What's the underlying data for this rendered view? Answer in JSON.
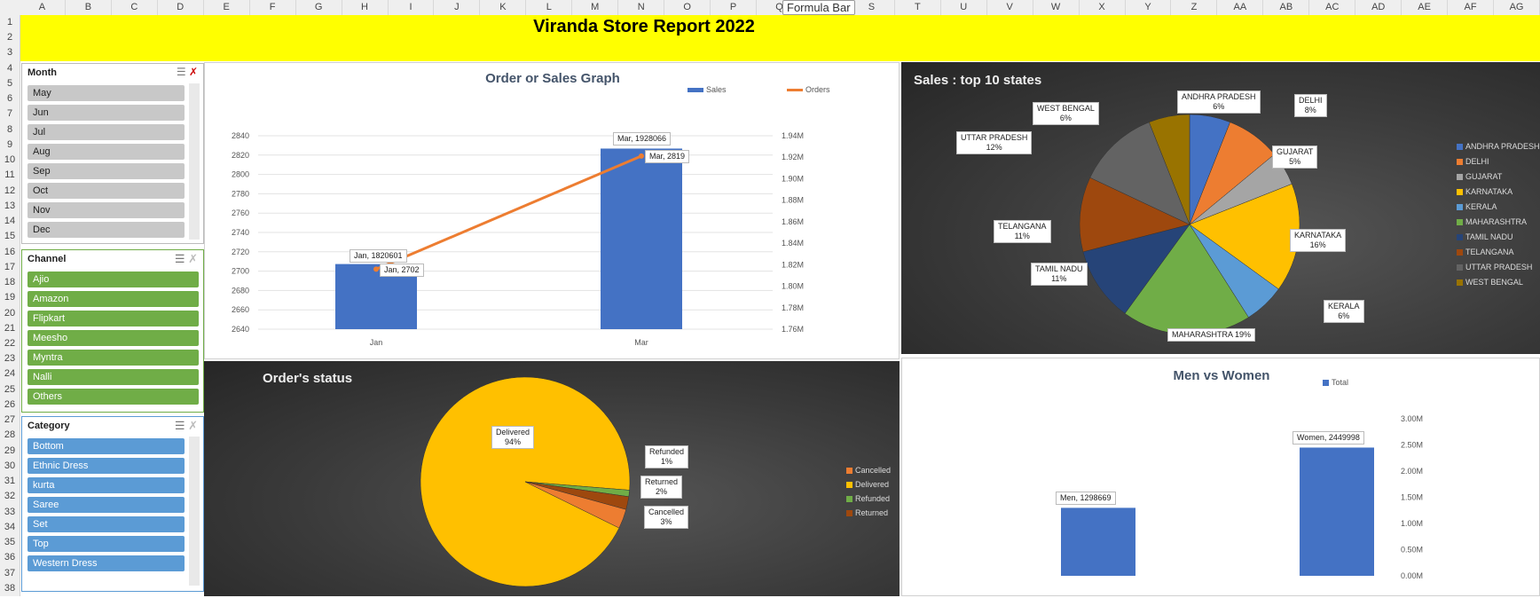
{
  "spreadsheet": {
    "formula_tip": "Formula Bar",
    "columns": [
      "A",
      "B",
      "C",
      "D",
      "E",
      "F",
      "G",
      "H",
      "I",
      "J",
      "K",
      "L",
      "M",
      "N",
      "O",
      "P",
      "Q",
      "R",
      "S",
      "T",
      "U",
      "V",
      "W",
      "X",
      "Y",
      "Z",
      "AA",
      "AB",
      "AC",
      "AD",
      "AE",
      "AF",
      "AG"
    ],
    "rows": [
      "1",
      "2",
      "3",
      "4",
      "5",
      "6",
      "7",
      "8",
      "9",
      "10",
      "11",
      "12",
      "13",
      "14",
      "15",
      "16",
      "17",
      "18",
      "19",
      "20",
      "21",
      "22",
      "23",
      "24",
      "25",
      "26",
      "27",
      "28",
      "29",
      "30",
      "31",
      "32",
      "33",
      "34",
      "35",
      "36",
      "37",
      "38"
    ]
  },
  "report": {
    "title": "Viranda Store Report 2022",
    "banner_color": "#ffff00"
  },
  "slicers": {
    "month": {
      "header": "Month",
      "items": [
        "May",
        "Jun",
        "Jul",
        "Aug",
        "Sep",
        "Oct",
        "Nov",
        "Dec"
      ],
      "color": "#c8c8c8"
    },
    "channel": {
      "header": "Channel",
      "items": [
        "Ajio",
        "Amazon",
        "Flipkart",
        "Meesho",
        "Myntra",
        "Nalli",
        "Others"
      ],
      "color": "#70ad47"
    },
    "category": {
      "header": "Category",
      "items": [
        "Bottom",
        "Ethnic Dress",
        "kurta",
        "Saree",
        "Set",
        "Top",
        "Western Dress"
      ],
      "color": "#5b9bd5"
    }
  },
  "charts": {
    "orders_sales": {
      "title": "Order or Sales Graph",
      "legend": [
        "Sales",
        "Orders"
      ],
      "left_ticks": [
        "2840",
        "2820",
        "2800",
        "2780",
        "2760",
        "2740",
        "2720",
        "2700",
        "2680",
        "2660",
        "2640"
      ],
      "right_ticks": [
        "1.94M",
        "1.92M",
        "1.90M",
        "1.88M",
        "1.86M",
        "1.84M",
        "1.82M",
        "1.80M",
        "1.78M",
        "1.76M"
      ],
      "categories": [
        "Jan",
        "Mar"
      ],
      "labels": [
        "Jan, 1820601",
        "Jan, 2702",
        "Mar, 1928066",
        "Mar, 2819"
      ]
    },
    "states": {
      "title": "Sales : top 10 states",
      "labels": [
        {
          "name": "ANDHRA PRADESH",
          "pct": "6%"
        },
        {
          "name": "DELHI",
          "pct": "8%"
        },
        {
          "name": "GUJARAT",
          "pct": "5%"
        },
        {
          "name": "KARNATAKA",
          "pct": "16%"
        },
        {
          "name": "KERALA",
          "pct": "6%"
        },
        {
          "name": "MAHARASHTRA",
          "pct": "19%"
        },
        {
          "name": "TAMIL NADU",
          "pct": "11%"
        },
        {
          "name": "TELANGANA",
          "pct": "11%"
        },
        {
          "name": "UTTAR PRADESH",
          "pct": "12%"
        },
        {
          "name": "WEST BENGAL",
          "pct": "6%"
        }
      ],
      "colors": [
        "#4472c4",
        "#ed7d31",
        "#a5a5a5",
        "#ffc000",
        "#5b9bd5",
        "#70ad47",
        "#264478",
        "#9e480e",
        "#636363",
        "#997300"
      ]
    },
    "order_status": {
      "title": "Order's status",
      "legend": [
        "Cancelled",
        "Delivered",
        "Refunded",
        "Returned"
      ],
      "colors": {
        "Cancelled": "#ed7d31",
        "Delivered": "#ffc000",
        "Refunded": "#70ad47",
        "Returned": "#9e480e"
      },
      "labels": [
        {
          "name": "Delivered",
          "pct": "94%"
        },
        {
          "name": "Refunded",
          "pct": "1%"
        },
        {
          "name": "Returned",
          "pct": "2%"
        },
        {
          "name": "Cancelled",
          "pct": "3%"
        }
      ]
    },
    "men_women": {
      "title": "Men vs Women",
      "legend": [
        "Total"
      ],
      "right_ticks": [
        "3.00M",
        "2.50M",
        "2.00M",
        "1.50M",
        "1.00M",
        "0.50M",
        "0.00M"
      ],
      "labels": [
        "Men, 1298669",
        "Women, 2449998"
      ]
    }
  },
  "chart_data": [
    {
      "type": "bar",
      "title": "Order or Sales Graph",
      "categories": [
        "Jan",
        "Mar"
      ],
      "series": [
        {
          "name": "Sales",
          "values": [
            1820601,
            1928066
          ]
        },
        {
          "name": "Orders",
          "values": [
            2702,
            2819
          ]
        }
      ],
      "ylim": [
        2640,
        2840
      ],
      "y2lim": [
        1760000,
        1940000
      ]
    },
    {
      "type": "pie",
      "title": "Sales : top 10 states",
      "categories": [
        "ANDHRA PRADESH",
        "DELHI",
        "GUJARAT",
        "KARNATAKA",
        "KERALA",
        "MAHARASHTRA",
        "TAMIL NADU",
        "TELANGANA",
        "UTTAR PRADESH",
        "WEST BENGAL"
      ],
      "values": [
        6,
        8,
        5,
        16,
        6,
        19,
        11,
        11,
        12,
        6
      ]
    },
    {
      "type": "pie",
      "title": "Order's status",
      "categories": [
        "Delivered",
        "Refunded",
        "Returned",
        "Cancelled"
      ],
      "values": [
        94,
        1,
        2,
        3
      ]
    },
    {
      "type": "bar",
      "title": "Men vs Women",
      "categories": [
        "Men",
        "Women"
      ],
      "series": [
        {
          "name": "Total",
          "values": [
            1298669,
            2449998
          ]
        }
      ],
      "ylim": [
        0,
        3000000
      ]
    }
  ]
}
